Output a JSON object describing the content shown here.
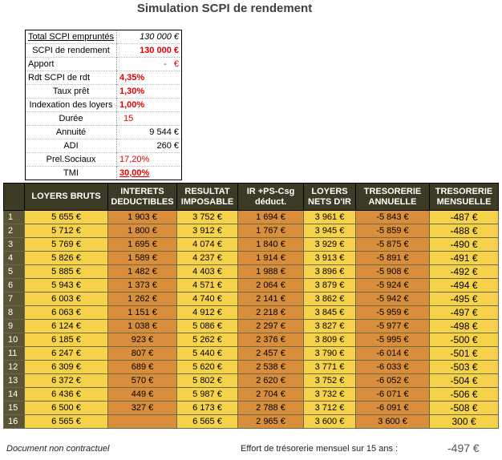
{
  "title": "Simulation SCPI de rendement",
  "params": [
    {
      "label": "Total SCPI empruntés",
      "value": "130 000 €"
    },
    {
      "label": "SCPI de rendement",
      "value": "130 000 €"
    },
    {
      "label": "Apport",
      "value": "-   €"
    },
    {
      "label": "Rdt SCPI de rdt",
      "value": "4,35%"
    },
    {
      "label": "Taux prêt",
      "value": "1,30%"
    },
    {
      "label": "Indexation des loyers",
      "value": "1,00%"
    },
    {
      "label": "Durée",
      "value": "15"
    },
    {
      "label": "Annuité",
      "value": "9 544 €"
    },
    {
      "label": "ADI",
      "value": "260 €"
    },
    {
      "label": "Prel.Sociaux",
      "value": "17,20%"
    },
    {
      "label": "TMI",
      "value": "30,00%"
    }
  ],
  "columns": [
    "LOYERS BRUTS",
    "INTERETS DEDUCTIBLES",
    "RESULTAT IMPOSABLE",
    "IR +PS-Csg déduct.",
    "LOYERS NETS D'IR",
    "TRESORERIE ANNUELLE",
    "TRESORERIE MENSUELLE"
  ],
  "rows": [
    [
      "1",
      "5 655 €",
      "1 903 €",
      "3 752 €",
      "1 694 €",
      "3 961 €",
      "-5 843 €",
      "-487 €"
    ],
    [
      "2",
      "5 712 €",
      "1 800 €",
      "3 912 €",
      "1 767 €",
      "3 945 €",
      "-5 859 €",
      "-488 €"
    ],
    [
      "3",
      "5 769 €",
      "1 695 €",
      "4 074 €",
      "1 840 €",
      "3 929 €",
      "-5 875 €",
      "-490 €"
    ],
    [
      "4",
      "5 826 €",
      "1 589 €",
      "4 237 €",
      "1 914 €",
      "3 913 €",
      "-5 891 €",
      "-491 €"
    ],
    [
      "5",
      "5 885 €",
      "1 482 €",
      "4 403 €",
      "1 988 €",
      "3 896 €",
      "-5 908 €",
      "-492 €"
    ],
    [
      "6",
      "5 943 €",
      "1 373 €",
      "4 571 €",
      "2 064 €",
      "3 879 €",
      "-5 924 €",
      "-494 €"
    ],
    [
      "7",
      "6 003 €",
      "1 262 €",
      "4 740 €",
      "2 141 €",
      "3 862 €",
      "-5 942 €",
      "-495 €"
    ],
    [
      "8",
      "6 063 €",
      "1 151 €",
      "4 912 €",
      "2 218 €",
      "3 845 €",
      "-5 959 €",
      "-497 €"
    ],
    [
      "9",
      "6 124 €",
      "1 038 €",
      "5 086 €",
      "2 297 €",
      "3 827 €",
      "-5 977 €",
      "-498 €"
    ],
    [
      "10",
      "6 185 €",
      "923 €",
      "5 262 €",
      "2 376 €",
      "3 809 €",
      "-5 995 €",
      "-500 €"
    ],
    [
      "11",
      "6 247 €",
      "807 €",
      "5 440 €",
      "2 457 €",
      "3 790 €",
      "-6 014 €",
      "-501 €"
    ],
    [
      "12",
      "6 309 €",
      "689 €",
      "5 620 €",
      "2 538 €",
      "3 771 €",
      "-6 033 €",
      "-503 €"
    ],
    [
      "13",
      "6 372 €",
      "570 €",
      "5 802 €",
      "2 620 €",
      "3 752 €",
      "-6 052 €",
      "-504 €"
    ],
    [
      "14",
      "6 436 €",
      "449 €",
      "5 987 €",
      "2 704 €",
      "3 732 €",
      "-6 071 €",
      "-506 €"
    ],
    [
      "15",
      "6 500 €",
      "327 €",
      "6 173 €",
      "2 788 €",
      "3 712 €",
      "-6 091 €",
      "-508 €"
    ],
    [
      "16",
      "6 565 €",
      "",
      "6 565 €",
      "2 965 €",
      "3 600 €",
      "3 600 €",
      "300 €"
    ]
  ],
  "footer": {
    "disclaimer": "Document non contractuel",
    "effort_label": "Effort de trésorerie mensuel sur 15 ans :",
    "effort_value": "-497 €"
  }
}
